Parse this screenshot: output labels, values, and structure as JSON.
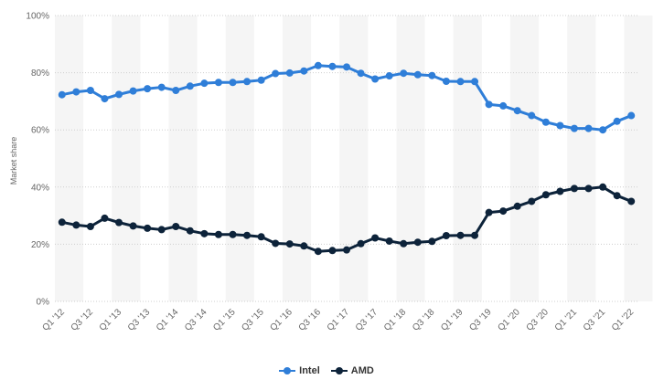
{
  "chart_data": {
    "type": "line",
    "ylabel": "Market share",
    "y_ticks": [
      "0%",
      "20%",
      "40%",
      "60%",
      "80%",
      "100%"
    ],
    "ylim": [
      0,
      100
    ],
    "grid": true,
    "legend_position": "bottom",
    "x": [
      "Q1 '12",
      "Q2 '12",
      "Q3 '12",
      "Q4 '12",
      "Q1 '13",
      "Q2 '13",
      "Q3 '13",
      "Q4 '13",
      "Q1 '14",
      "Q2 '14",
      "Q3 '14",
      "Q4 '14",
      "Q1 '15",
      "Q2 '15",
      "Q3 '15",
      "Q4 '15",
      "Q1 '16",
      "Q2 '16",
      "Q3 '16",
      "Q4 '16",
      "Q1 '17",
      "Q2 '17",
      "Q3 '17",
      "Q4 '17",
      "Q1 '18",
      "Q2 '18",
      "Q3 '18",
      "Q4 '18",
      "Q1 '19",
      "Q2 '19",
      "Q3 '19",
      "Q4 '19",
      "Q1 '20",
      "Q2 '20",
      "Q3 '20",
      "Q4 '20",
      "Q1 '21",
      "Q2 '21",
      "Q3 '21",
      "Q4 '21",
      "Q1 '22"
    ],
    "x_tick_labels": [
      "Q1 '12",
      "Q3 '12",
      "Q1 '13",
      "Q3 '13",
      "Q1 '14",
      "Q3 '14",
      "Q1 '15",
      "Q3 '15",
      "Q1 '16",
      "Q3 '16",
      "Q1 '17",
      "Q3 '17",
      "Q1 '18",
      "Q3 '18",
      "Q1 '19",
      "Q3 '19",
      "Q1 '20",
      "Q3 '20",
      "Q1 '21",
      "Q3 '21",
      "Q1 '22"
    ],
    "series": [
      {
        "name": "Intel",
        "color": "#2f7ed8",
        "values": [
          72.3,
          73.3,
          73.8,
          70.9,
          72.4,
          73.6,
          74.4,
          74.9,
          73.8,
          75.3,
          76.3,
          76.6,
          76.6,
          76.9,
          77.4,
          79.7,
          79.9,
          80.6,
          82.5,
          82.2,
          82.0,
          79.8,
          77.8,
          78.9,
          79.8,
          79.3,
          79.0,
          77.0,
          76.9,
          76.9,
          68.9,
          68.4,
          66.7,
          65.0,
          62.7,
          61.5,
          60.5,
          60.5,
          60.0,
          63.0,
          65.0
        ]
      },
      {
        "name": "AMD",
        "color": "#0d233a",
        "values": [
          27.7,
          26.7,
          26.2,
          29.1,
          27.6,
          26.4,
          25.6,
          25.1,
          26.2,
          24.7,
          23.7,
          23.4,
          23.4,
          23.1,
          22.6,
          20.3,
          20.1,
          19.4,
          17.5,
          17.8,
          18.0,
          20.2,
          22.2,
          21.1,
          20.2,
          20.7,
          21.0,
          23.0,
          23.1,
          23.1,
          31.1,
          31.6,
          33.3,
          35.0,
          37.3,
          38.5,
          39.5,
          39.5,
          40.0,
          37.0,
          35.0
        ]
      }
    ]
  }
}
